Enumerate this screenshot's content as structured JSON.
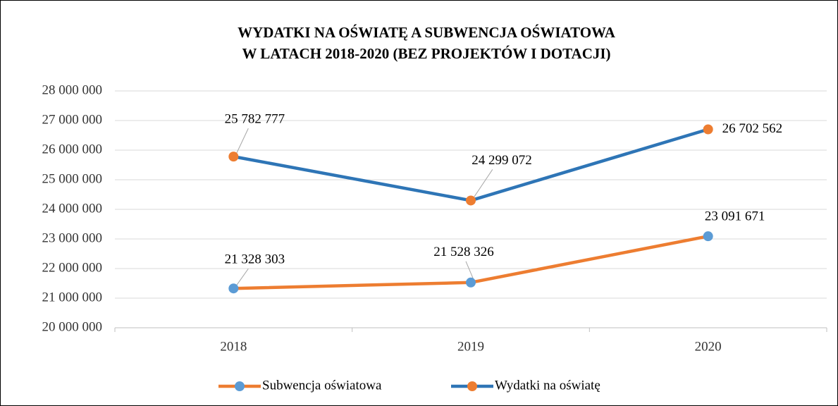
{
  "chart_data": {
    "type": "line",
    "title": [
      "WYDATKI NA OŚWIATĘ A SUBWENCJA OŚWIATOWA",
      "W LATACH 2018-2020 (BEZ PROJEKTÓW I DOTACJI)"
    ],
    "categories": [
      "2018",
      "2019",
      "2020"
    ],
    "series": [
      {
        "name": "Subwencja oświatowa",
        "color": "#ed7d31",
        "marker_color": "#5b9bd5",
        "values": [
          21328303,
          21528326,
          23091671
        ],
        "value_labels": [
          "21 328 303",
          "21 528 326",
          "23 091 671"
        ]
      },
      {
        "name": "Wydatki na oświatę",
        "color": "#2e75b6",
        "marker_color": "#ed7d31",
        "values": [
          25782777,
          24299072,
          26702562
        ],
        "value_labels": [
          "25 782 777",
          "24 299 072",
          "26 702 562"
        ]
      }
    ],
    "ylim": [
      20000000,
      28000000
    ],
    "yticks": [
      {
        "value": 20000000,
        "label": "20 000 000"
      },
      {
        "value": 21000000,
        "label": "21 000 000"
      },
      {
        "value": 22000000,
        "label": "22 000 000"
      },
      {
        "value": 23000000,
        "label": "23 000 000"
      },
      {
        "value": 24000000,
        "label": "24 000 000"
      },
      {
        "value": 25000000,
        "label": "25 000 000"
      },
      {
        "value": 26000000,
        "label": "26 000 000"
      },
      {
        "value": 27000000,
        "label": "27 000 000"
      },
      {
        "value": 28000000,
        "label": "28 000 000"
      }
    ],
    "grid": true,
    "legend": "bottom"
  }
}
